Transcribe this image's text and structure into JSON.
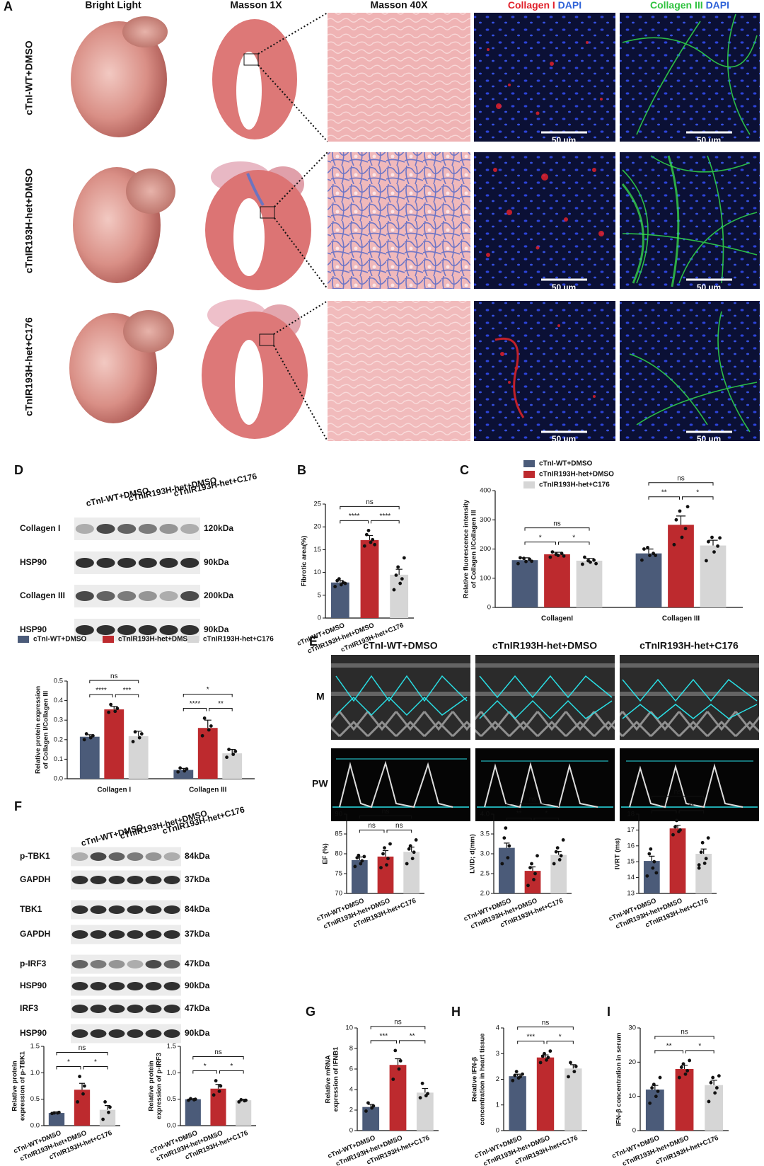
{
  "panel_a": {
    "label": "A",
    "columns": [
      "Bright Light",
      "Masson 1X",
      "Masson 40X",
      {
        "stain": "Collagen I",
        "counterstain": "DAPI"
      },
      {
        "stain": "Collagen III",
        "counterstain": "DAPI"
      }
    ],
    "rows": [
      "cTnI-WT+DMSO",
      "cTnIR193H-het+DMSO",
      "cTnIR193H-het+C176"
    ],
    "scale_bar": "50 µm"
  },
  "blot_d": {
    "label": "D",
    "lanes": [
      "cTnI-WT+DMSO",
      "cTnIR193H-het+DMSO",
      "cTnIR193H-het+C176"
    ],
    "rows": [
      {
        "protein": "Collagen I",
        "size": "120kDa"
      },
      {
        "protein": "HSP90",
        "size": "90kDa"
      },
      {
        "protein": "Collagen III",
        "size": "200kDa"
      },
      {
        "protein": "HSP90",
        "size": "90kDa"
      }
    ]
  },
  "echo_e": {
    "label": "E",
    "columns": [
      "cTnI-WT+DMSO",
      "cTnIR193H-het+DMSO",
      "cTnIR193H-het+C176"
    ],
    "rows": [
      "M",
      "PW"
    ]
  },
  "blot_f": {
    "label": "F",
    "lanes": [
      "cTnI-WT+DMSO",
      "cTnIR193H-het+DMSO",
      "cTnIR193H-het+C176"
    ],
    "rows": [
      {
        "protein": "p-TBK1",
        "size": "84kDa"
      },
      {
        "protein": "GAPDH",
        "size": "37kDa"
      },
      {
        "protein": "TBK1",
        "size": "84kDa"
      },
      {
        "protein": "GAPDH",
        "size": "37kDa"
      },
      {
        "protein": "p-IRF3",
        "size": "47kDa"
      },
      {
        "protein": "HSP90",
        "size": "90kDa"
      },
      {
        "protein": "IRF3",
        "size": "47kDa"
      },
      {
        "protein": "HSP90",
        "size": "90kDa"
      }
    ]
  },
  "chart_data": [
    {
      "type": "bar",
      "panel": "B",
      "ylabel": [
        "Fibrotic area(%)"
      ],
      "categories": [
        "cTnI-WT+DMSO",
        "cTnIR193H-het+DMSO",
        "cTnIR193H-het+C176"
      ],
      "colors": [
        "#4b5b79",
        "#bd2a2e",
        "#d6d6d6"
      ],
      "values": [
        7.8,
        17.1,
        9.5
      ],
      "errors": [
        0.5,
        1.0,
        1.2
      ],
      "points": [
        [
          6.9,
          7.3,
          7.8,
          8.2,
          8.6,
          7.6
        ],
        [
          15.8,
          16.6,
          17.2,
          18.3,
          19.2,
          16.1
        ],
        [
          6.2,
          7.6,
          8.6,
          9.4,
          11.2,
          13.2
        ]
      ],
      "significance": [
        "ns",
        "****",
        "****"
      ],
      "ylim": [
        0,
        25
      ],
      "yticks": [
        0,
        5,
        10,
        15,
        20,
        25
      ]
    },
    {
      "type": "bar",
      "panel": "C",
      "ylabel": [
        "Relative fluorescence intensity",
        "of Collagen I/Collagen III"
      ],
      "categories": [
        "CollagenI",
        "Collagen III"
      ],
      "legend": "upper-left",
      "series": [
        {
          "name": "cTnI-WT+DMSO",
          "color": "#4b5b79",
          "values": [
            162,
            185
          ],
          "errors": [
            8,
            15
          ],
          "points": [
            [
              150,
              157,
              165,
              170,
              168,
              158
            ],
            [
              162,
              178,
              185,
              200,
              205,
              178
            ]
          ]
        },
        {
          "name": "cTnIR193H-het+DMSO",
          "color": "#bd2a2e",
          "values": [
            182,
            283
          ],
          "errors": [
            7,
            30
          ],
          "points": [
            [
              172,
              178,
              185,
              190,
              182,
              176
            ],
            [
              215,
              240,
              270,
              300,
              330,
              345
            ]
          ]
        },
        {
          "name": "cTnIR193H-het+C176",
          "color": "#d6d6d6",
          "values": [
            160,
            212
          ],
          "errors": [
            8,
            18
          ],
          "points": [
            [
              148,
              155,
              162,
              172,
              160,
              150
            ],
            [
              160,
              190,
              210,
              225,
              240,
              238
            ]
          ]
        }
      ],
      "significance": [
        [
          "ns",
          "*",
          "*"
        ],
        [
          "ns",
          "**",
          "*"
        ]
      ],
      "ylim": [
        0,
        400
      ],
      "yticks": [
        0,
        100,
        200,
        300,
        400
      ]
    },
    {
      "type": "bar",
      "ylabel": [
        "Relative protein expression",
        "of Collagen I/Collagen III"
      ],
      "categories": [
        "Collagen I",
        "Collagen III"
      ],
      "legend": "top",
      "series": [
        {
          "name": "cTnI-WT+DMSO",
          "color": "#4b5b79",
          "values": [
            0.215,
            0.045
          ],
          "errors": [
            0.01,
            0.008
          ],
          "points": [
            [
              0.2,
              0.21,
              0.22,
              0.23
            ],
            [
              0.035,
              0.04,
              0.05,
              0.055
            ]
          ]
        },
        {
          "name": "cTnIR193H-het+DMSO",
          "color": "#bd2a2e",
          "values": [
            0.355,
            0.26
          ],
          "errors": [
            0.015,
            0.04
          ],
          "points": [
            [
              0.34,
              0.345,
              0.36,
              0.38
            ],
            [
              0.22,
              0.25,
              0.27,
              0.31
            ]
          ]
        },
        {
          "name": "cTnIR193H-het+C176",
          "color": "#d6d6d6",
          "values": [
            0.218,
            0.13
          ],
          "errors": [
            0.025,
            0.02
          ],
          "points": [
            [
              0.19,
              0.21,
              0.23,
              0.24
            ],
            [
              0.11,
              0.125,
              0.14,
              0.15
            ]
          ]
        }
      ],
      "significance": [
        [
          "ns",
          "****",
          "***"
        ],
        [
          "*",
          "****",
          "**"
        ]
      ],
      "ylim": [
        0,
        0.5
      ],
      "yticks": [
        {
          "value": 0,
          "label": "0.0"
        },
        0.1,
        0.2,
        0.3,
        0.4,
        0.5
      ]
    },
    {
      "type": "bar",
      "ylabel": [
        "EF (%)"
      ],
      "categories": [
        "cTnI-WT+DMSO",
        "cTnIR193H-het+DMSO",
        "cTnIR193H-het+C176"
      ],
      "colors": [
        "#4b5b79",
        "#bd2a2e",
        "#d6d6d6"
      ],
      "values": [
        78.4,
        79.3,
        80.5
      ],
      "errors": [
        0.8,
        1.5,
        1.2
      ],
      "points": [
        [
          76.8,
          77.5,
          78.2,
          79,
          79.6,
          79.3
        ],
        [
          76.5,
          77.2,
          78.8,
          80,
          81.5,
          82.5
        ],
        [
          77.5,
          78.8,
          80.4,
          81.2,
          82,
          83.5
        ]
      ],
      "significance": [
        "ns",
        "ns",
        "ns"
      ],
      "ylim": [
        70,
        90
      ],
      "yticks": [
        70,
        75,
        80,
        85,
        90
      ]
    },
    {
      "type": "bar",
      "ylabel": [
        "LVID; d(mm)"
      ],
      "categories": [
        "cTnI-WT+DMSO",
        "cTnIR193H-het+DMSO",
        "cTnIR193H-het+C176"
      ],
      "colors": [
        "#4b5b79",
        "#bd2a2e",
        "#d6d6d6"
      ],
      "values": [
        3.15,
        2.57,
        2.97
      ],
      "errors": [
        0.12,
        0.1,
        0.09
      ],
      "points": [
        [
          2.75,
          2.9,
          3.2,
          3.4,
          3.65
        ],
        [
          2.2,
          2.35,
          2.5,
          2.65,
          2.75,
          2.95
        ],
        [
          2.75,
          2.85,
          2.95,
          3.05,
          3.15,
          3.35
        ]
      ],
      "significance": [
        "ns",
        "**",
        "*"
      ],
      "ylim": [
        2,
        4
      ],
      "yticks": [
        {
          "value": 2,
          "label": "2.0"
        },
        2.5,
        {
          "value": 3,
          "label": "3.0"
        },
        3.5,
        {
          "value": 4,
          "label": "4.0"
        }
      ]
    },
    {
      "type": "bar",
      "ylabel": [
        "IVRT (ms)"
      ],
      "categories": [
        "cTnI-WT+DMSO",
        "cTnIR193H-het+DMSO",
        "cTnIR193H-het+C176"
      ],
      "colors": [
        "#4b5b79",
        "#bd2a2e",
        "#d6d6d6"
      ],
      "values": [
        15.05,
        17.1,
        15.5
      ],
      "errors": [
        0.3,
        0.2,
        0.3
      ],
      "points": [
        [
          14.1,
          14.6,
          15.0,
          15.5,
          15.8,
          14.3
        ],
        [
          16.7,
          16.9,
          17.0,
          17.2,
          17.6
        ],
        [
          14.6,
          14.9,
          15.2,
          15.6,
          16.2,
          16.5,
          14.8
        ]
      ],
      "significance": [
        "ns",
        "***",
        "**"
      ],
      "ylim": [
        13,
        18
      ],
      "yticks": [
        13,
        14,
        15,
        16,
        17,
        18
      ]
    },
    {
      "type": "bar",
      "ylabel": [
        "Relative protein",
        "expression of p-TBK1"
      ],
      "categories": [
        "cTnI-WT+DMSO",
        "cTnIR193H-het+DMSO",
        "cTnIR193H-het+C176"
      ],
      "colors": [
        "#4b5b79",
        "#bd2a2e",
        "#d6d6d6"
      ],
      "values": [
        0.24,
        0.68,
        0.3
      ],
      "errors": [
        0.02,
        0.12,
        0.08
      ],
      "points": [
        [
          0.23,
          0.24,
          0.25,
          0.24
        ],
        [
          0.45,
          0.6,
          0.75,
          0.93
        ],
        [
          0.12,
          0.25,
          0.35,
          0.45
        ]
      ],
      "significance": [
        "ns",
        "*",
        "*"
      ],
      "ylim": [
        0,
        1.5
      ],
      "yticks": [
        {
          "value": 0,
          "label": "0.0"
        },
        0.5,
        {
          "value": 1,
          "label": "1.0"
        },
        1.5
      ]
    },
    {
      "type": "bar",
      "ylabel": [
        "Relative protein",
        "expression of p-IRF3"
      ],
      "categories": [
        "cTnI-WT+DMSO",
        "cTnIR193H-het+DMSO",
        "cTnIR193H-het+C176"
      ],
      "colors": [
        "#4b5b79",
        "#bd2a2e",
        "#d6d6d6"
      ],
      "values": [
        0.5,
        0.7,
        0.48
      ],
      "errors": [
        0.01,
        0.08,
        0.02
      ],
      "points": [
        [
          0.48,
          0.49,
          0.5,
          0.51
        ],
        [
          0.58,
          0.65,
          0.75,
          0.85
        ],
        [
          0.45,
          0.47,
          0.48,
          0.49
        ]
      ],
      "significance": [
        "ns",
        "*",
        "*"
      ],
      "ylim": [
        0,
        1.5
      ],
      "yticks": [
        {
          "value": 0,
          "label": "0.0"
        },
        0.5,
        {
          "value": 1,
          "label": "1.0"
        },
        1.5
      ]
    },
    {
      "type": "bar",
      "panel": "G",
      "ylabel": [
        "Relative mRNA",
        "expression of IFNB1"
      ],
      "categories": [
        "cTnI-WT+DMSO",
        "cTnIR193H-het+DMSO",
        "cTnIR193H-het+C176"
      ],
      "colors": [
        "#4b5b79",
        "#bd2a2e",
        "#d6d6d6"
      ],
      "values": [
        2.3,
        6.4,
        3.7
      ],
      "errors": [
        0.25,
        0.6,
        0.4
      ],
      "points": [
        [
          1.9,
          2.2,
          2.4,
          2.7
        ],
        [
          5.0,
          6.0,
          6.8,
          7.8
        ],
        [
          3.2,
          3.4,
          3.6,
          4.6
        ]
      ],
      "significance": [
        "ns",
        "***",
        "**"
      ],
      "ylim": [
        0,
        10
      ],
      "yticks": [
        0,
        2,
        4,
        6,
        8,
        10
      ]
    },
    {
      "type": "bar",
      "panel": "H",
      "ylabel": [
        "Relative IFN-β",
        "concentration in heart tissue"
      ],
      "categories": [
        "cTnI-WT+DMSO",
        "cTnIR193H-het+DMSO",
        "cTnIR193H-het+C176"
      ],
      "colors": [
        "#4b5b79",
        "#bd2a2e",
        "#d6d6d6"
      ],
      "values": [
        2.12,
        2.85,
        2.42
      ],
      "errors": [
        0.08,
        0.1,
        0.15
      ],
      "points": [
        [
          1.95,
          2.05,
          2.1,
          2.15,
          2.3,
          2.2
        ],
        [
          2.65,
          2.75,
          2.85,
          2.9,
          3.0,
          3.1
        ],
        [
          2.1,
          2.3,
          2.5,
          2.65
        ]
      ],
      "significance": [
        "ns",
        "***",
        "*"
      ],
      "ylim": [
        0,
        4
      ],
      "yticks": [
        0,
        1,
        2,
        3,
        4
      ]
    },
    {
      "type": "bar",
      "panel": "I",
      "ylabel": [
        "IFN-β concentration in serum"
      ],
      "categories": [
        "cTnI-WT+DMSO",
        "cTnIR193H-het+DMSO",
        "cTnIR193H-het+C176"
      ],
      "colors": [
        "#4b5b79",
        "#bd2a2e",
        "#d6d6d6"
      ],
      "values": [
        12,
        18,
        13.3
      ],
      "errors": [
        1.2,
        1.1,
        1.4
      ],
      "points": [
        [
          8,
          10,
          11.5,
          12.5,
          13.5,
          15.5
        ],
        [
          15.5,
          16.5,
          17.5,
          18.5,
          19.5,
          20.5
        ],
        [
          8.5,
          11,
          12.5,
          14,
          15.5,
          16
        ]
      ],
      "significance": [
        "ns",
        "**",
        "*"
      ],
      "ylim": [
        0,
        30
      ],
      "yticks": [
        0,
        10,
        20,
        30
      ]
    }
  ]
}
